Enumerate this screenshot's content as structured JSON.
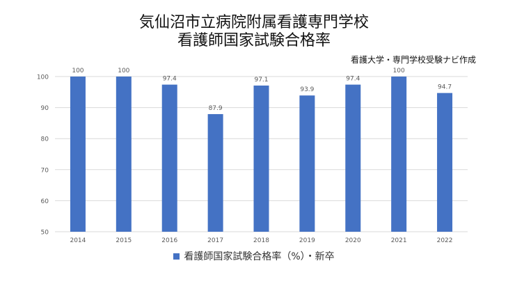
{
  "title_line1": "気仙沼市立病院附属看護専門学校",
  "title_line2": "看護師国家試験合格率",
  "source": "看護大学・専門学校受験ナビ作成",
  "colors": {
    "bar": "#4472c4",
    "grid": "#d9d9d9",
    "axis_text": "#595959"
  },
  "chart_data": {
    "type": "bar",
    "title": "",
    "xlabel": "",
    "ylabel": "",
    "ylim": [
      50,
      100
    ],
    "yticks": [
      50,
      60,
      70,
      80,
      90,
      100
    ],
    "grid": true,
    "legend_position": "bottom",
    "categories": [
      "2014",
      "2015",
      "2016",
      "2017",
      "2018",
      "2019",
      "2020",
      "2021",
      "2022"
    ],
    "series": [
      {
        "name": "看護師国家試験合格率（%）・新卒",
        "values": [
          100,
          100,
          97.4,
          87.9,
          97.1,
          93.9,
          97.4,
          100,
          94.7
        ],
        "labels": [
          "100",
          "100",
          "97.4",
          "87.9",
          "97.1",
          "93.9",
          "97.4",
          "100",
          "94.7"
        ]
      }
    ]
  }
}
